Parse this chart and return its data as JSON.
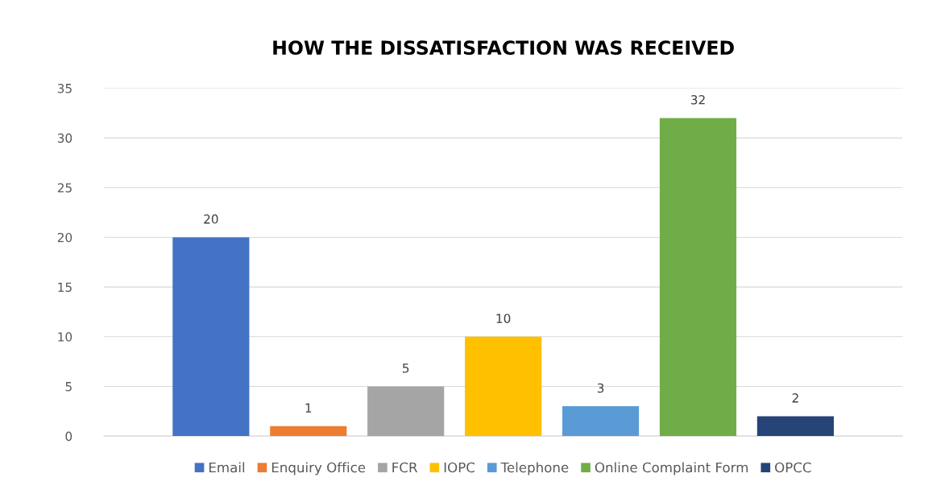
{
  "chart_data": {
    "type": "bar",
    "title": "HOW THE DISSATISFACTION WAS RECEIVED",
    "categories": [
      null
    ],
    "series": [
      {
        "name": "Email",
        "color": "#4472c4",
        "values": [
          20
        ]
      },
      {
        "name": "Enquiry Office",
        "color": "#ed7d31",
        "values": [
          1
        ]
      },
      {
        "name": "FCR",
        "color": "#a5a5a5",
        "values": [
          5
        ]
      },
      {
        "name": "IOPC",
        "color": "#ffc000",
        "values": [
          10
        ]
      },
      {
        "name": "Telephone",
        "color": "#5b9bd5",
        "values": [
          3
        ]
      },
      {
        "name": "Online Complaint Form",
        "color": "#70ad47",
        "values": [
          32
        ]
      },
      {
        "name": "OPCC",
        "color": "#264478",
        "values": [
          2
        ]
      }
    ],
    "ylim": [
      0,
      35
    ],
    "yticks": [
      0,
      5,
      10,
      15,
      20,
      25,
      30,
      35
    ],
    "grid": "y",
    "legend": "bottom",
    "data_labels": true
  }
}
